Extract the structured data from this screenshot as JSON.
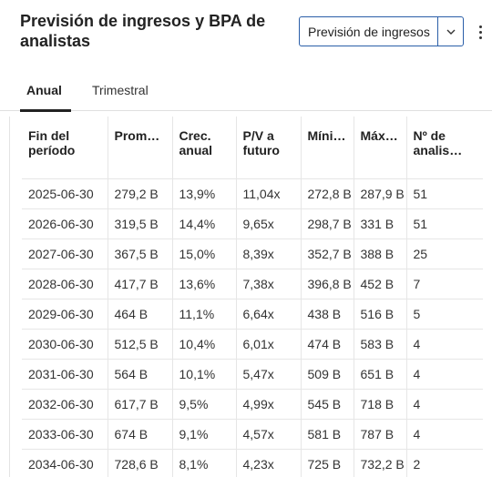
{
  "header": {
    "title": "Previsión de ingresos y BPA de analistas"
  },
  "selector": {
    "selected": "Previsión de ingresos",
    "arrow_icon": "chevron-down-icon"
  },
  "menu": {
    "icon": "more-vertical-icon"
  },
  "tabs": [
    {
      "label": "Anual",
      "active": true
    },
    {
      "label": "Trimestral",
      "active": false
    }
  ],
  "table": {
    "columns": [
      "Fin del período",
      "Prom…",
      "Crec. anual",
      "P/V a futuro",
      "Míni…",
      "Máx…",
      "Nº de analis…"
    ],
    "rows": [
      [
        "2025-06-30",
        "279,2 B",
        "13,9%",
        "11,04x",
        "272,8 B",
        "287,9 B",
        "51"
      ],
      [
        "2026-06-30",
        "319,5 B",
        "14,4%",
        "9,65x",
        "298,7 B",
        "331 B",
        "51"
      ],
      [
        "2027-06-30",
        "367,5 B",
        "15,0%",
        "8,39x",
        "352,7 B",
        "388 B",
        "25"
      ],
      [
        "2028-06-30",
        "417,7 B",
        "13,6%",
        "7,38x",
        "396,8 B",
        "452 B",
        "7"
      ],
      [
        "2029-06-30",
        "464 B",
        "11,1%",
        "6,64x",
        "438 B",
        "516 B",
        "5"
      ],
      [
        "2030-06-30",
        "512,5 B",
        "10,4%",
        "6,01x",
        "474 B",
        "583 B",
        "4"
      ],
      [
        "2031-06-30",
        "564 B",
        "10,1%",
        "5,47x",
        "509 B",
        "651 B",
        "4"
      ],
      [
        "2032-06-30",
        "617,7 B",
        "9,5%",
        "4,99x",
        "545 B",
        "718 B",
        "4"
      ],
      [
        "2033-06-30",
        "674 B",
        "9,1%",
        "4,57x",
        "581 B",
        "787 B",
        "4"
      ],
      [
        "2034-06-30",
        "728,6 B",
        "8,1%",
        "4,23x",
        "725 B",
        "732,2 B",
        "2"
      ]
    ]
  }
}
